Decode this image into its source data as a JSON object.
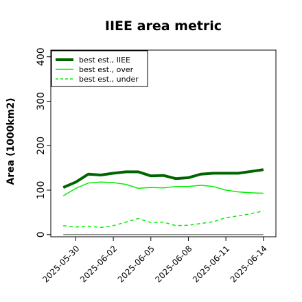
{
  "chart_data": {
    "type": "line",
    "title": "IIEE area metric",
    "xlabel": "",
    "ylabel": "Area (1000km2)",
    "ylim": [
      -5,
      415
    ],
    "yticks": [
      0,
      100,
      200,
      300,
      400
    ],
    "x": [
      "2025-05-29",
      "2025-05-30",
      "2025-05-31",
      "2025-06-01",
      "2025-06-02",
      "2025-06-03",
      "2025-06-04",
      "2025-06-05",
      "2025-06-06",
      "2025-06-07",
      "2025-06-08",
      "2025-06-09",
      "2025-06-10",
      "2025-06-11",
      "2025-06-12",
      "2025-06-13",
      "2025-06-14"
    ],
    "xticks": [
      "2025-05-30",
      "2025-06-02",
      "2025-06-05",
      "2025-06-08",
      "2025-06-11",
      "2025-06-14"
    ],
    "xlim": [
      "2025-05-28",
      "2025-06-15"
    ],
    "zero_line": 0,
    "legend_position": "top-left",
    "series": [
      {
        "name": "best est., IIEE",
        "color": "#006400",
        "style": "solid",
        "width": "thick",
        "values": [
          106,
          118,
          136,
          134,
          138,
          141,
          141,
          132,
          133,
          126,
          128,
          136,
          138,
          138,
          138,
          142,
          146
        ]
      },
      {
        "name": "best est., over",
        "color": "#00ee00",
        "style": "solid",
        "width": "thin",
        "values": [
          87,
          104,
          116,
          118,
          117,
          113,
          104,
          106,
          105,
          108,
          108,
          111,
          108,
          100,
          96,
          94,
          93
        ]
      },
      {
        "name": "best est., under",
        "color": "#00ee00",
        "style": "dashed",
        "width": "thin",
        "values": [
          20,
          17,
          19,
          16,
          20,
          28,
          36,
          27,
          28,
          20,
          21,
          25,
          29,
          38,
          42,
          47,
          53
        ]
      }
    ]
  }
}
